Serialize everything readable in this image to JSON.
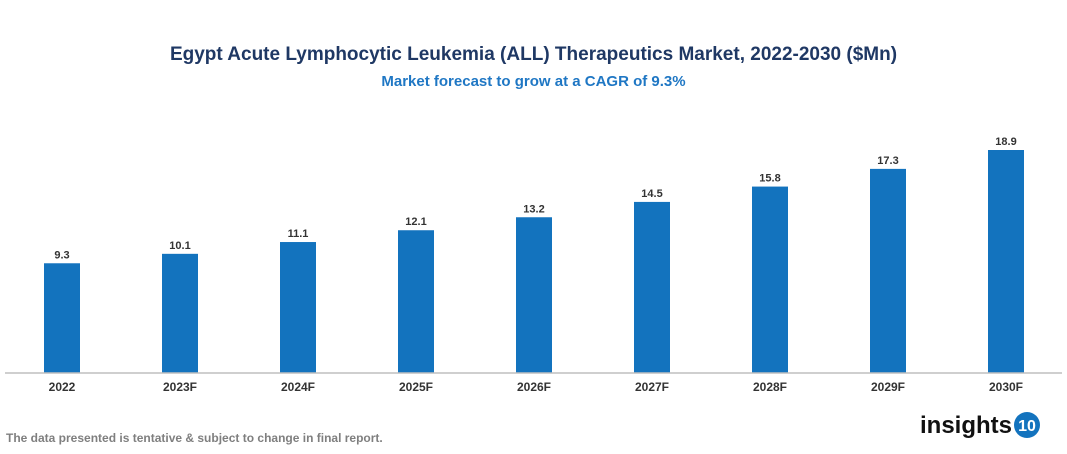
{
  "chart_data": {
    "type": "bar",
    "title": "Egypt Acute Lymphocytic Leukemia (ALL) Therapeutics Market, 2022-2030 ($Mn)",
    "subtitle": "Market forecast to grow at a CAGR of 9.3%",
    "categories": [
      "2022",
      "2023F",
      "2024F",
      "2025F",
      "2026F",
      "2027F",
      "2028F",
      "2029F",
      "2030F"
    ],
    "values": [
      9.3,
      10.1,
      11.1,
      12.1,
      13.2,
      14.5,
      15.8,
      17.3,
      18.9
    ],
    "data_labels": [
      "9.3",
      "10.1",
      "11.1",
      "12.1",
      "13.2",
      "14.5",
      "15.8",
      "17.3",
      "18.9"
    ],
    "xlabel": "",
    "ylabel": "",
    "ylim": [
      0,
      20
    ],
    "grid": false,
    "legend": "none",
    "bar_color": "#1373be"
  },
  "footnote": "The data presented is tentative & subject to change in final report.",
  "logo": {
    "text": "insights",
    "badge": "10",
    "badge_color": "#1373be"
  }
}
